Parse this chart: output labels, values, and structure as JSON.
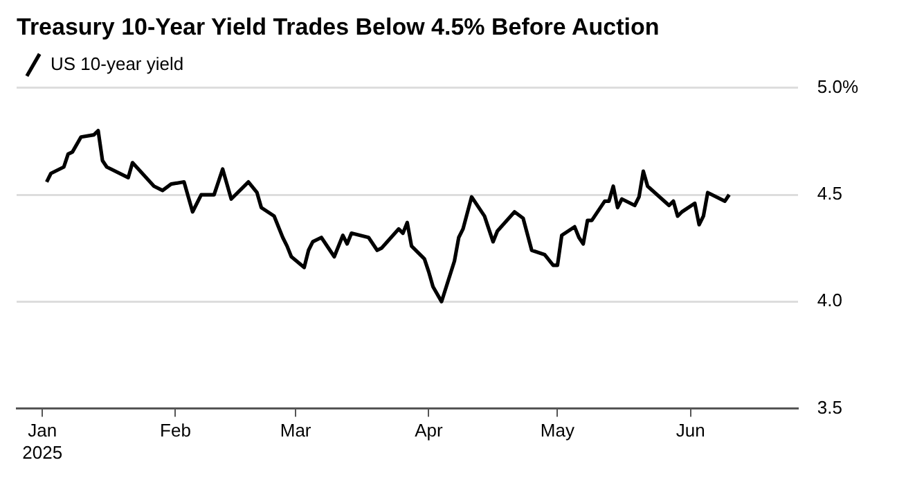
{
  "chart_data": {
    "type": "line",
    "title": "Treasury 10-Year Yield Trades Below 4.5% Before Auction",
    "x": [
      "2025-01-02",
      "2025-01-03",
      "2025-01-06",
      "2025-01-07",
      "2025-01-08",
      "2025-01-10",
      "2025-01-13",
      "2025-01-14",
      "2025-01-15",
      "2025-01-16",
      "2025-01-21",
      "2025-01-22",
      "2025-01-27",
      "2025-01-29",
      "2025-01-31",
      "2025-02-03",
      "2025-02-05",
      "2025-02-07",
      "2025-02-10",
      "2025-02-12",
      "2025-02-14",
      "2025-02-18",
      "2025-02-20",
      "2025-02-21",
      "2025-02-24",
      "2025-02-26",
      "2025-02-27",
      "2025-02-28",
      "2025-03-03",
      "2025-03-04",
      "2025-03-05",
      "2025-03-07",
      "2025-03-10",
      "2025-03-12",
      "2025-03-13",
      "2025-03-14",
      "2025-03-18",
      "2025-03-20",
      "2025-03-21",
      "2025-03-25",
      "2025-03-26",
      "2025-03-27",
      "2025-03-28",
      "2025-03-31",
      "2025-04-01",
      "2025-04-02",
      "2025-04-04",
      "2025-04-07",
      "2025-04-08",
      "2025-04-09",
      "2025-04-11",
      "2025-04-14",
      "2025-04-16",
      "2025-04-17",
      "2025-04-21",
      "2025-04-23",
      "2025-04-25",
      "2025-04-28",
      "2025-04-30",
      "2025-05-01",
      "2025-05-02",
      "2025-05-05",
      "2025-05-06",
      "2025-05-07",
      "2025-05-08",
      "2025-05-09",
      "2025-05-12",
      "2025-05-13",
      "2025-05-14",
      "2025-05-15",
      "2025-05-16",
      "2025-05-19",
      "2025-05-20",
      "2025-05-21",
      "2025-05-22",
      "2025-05-27",
      "2025-05-28",
      "2025-05-29",
      "2025-05-30",
      "2025-06-02",
      "2025-06-03",
      "2025-06-04",
      "2025-06-05",
      "2025-06-09",
      "2025-06-10"
    ],
    "series": [
      {
        "name": "US 10-year yield",
        "color": "#000000",
        "values": [
          4.56,
          4.6,
          4.63,
          4.69,
          4.7,
          4.77,
          4.78,
          4.8,
          4.66,
          4.63,
          4.58,
          4.65,
          4.54,
          4.52,
          4.55,
          4.56,
          4.42,
          4.5,
          4.5,
          4.62,
          4.48,
          4.56,
          4.51,
          4.44,
          4.4,
          4.3,
          4.26,
          4.21,
          4.16,
          4.24,
          4.28,
          4.3,
          4.21,
          4.31,
          4.27,
          4.32,
          4.3,
          4.24,
          4.25,
          4.34,
          4.32,
          4.37,
          4.26,
          4.2,
          4.14,
          4.07,
          4.0,
          4.19,
          4.3,
          4.34,
          4.49,
          4.4,
          4.28,
          4.33,
          4.42,
          4.39,
          4.24,
          4.22,
          4.17,
          4.17,
          4.31,
          4.35,
          4.3,
          4.27,
          4.38,
          4.38,
          4.47,
          4.47,
          4.54,
          4.44,
          4.48,
          4.45,
          4.49,
          4.61,
          4.54,
          4.45,
          4.47,
          4.4,
          4.42,
          4.46,
          4.36,
          4.4,
          4.51,
          4.47,
          4.5
        ]
      }
    ],
    "xlim": [
      "2024-12-26",
      "2025-06-26"
    ],
    "xticks": [
      {
        "value": "2025-01-01",
        "label": "Jan\n2025"
      },
      {
        "value": "2025-02-01",
        "label": "Feb"
      },
      {
        "value": "2025-03-01",
        "label": "Mar"
      },
      {
        "value": "2025-04-01",
        "label": "Apr"
      },
      {
        "value": "2025-05-01",
        "label": "May"
      },
      {
        "value": "2025-06-01",
        "label": "Jun"
      }
    ],
    "ylim": [
      3.5,
      5.0
    ],
    "yticks": [
      3.5,
      {
        "value": 4.0,
        "label": "4.0"
      },
      4.5,
      {
        "value": 5.0,
        "label": "5.0%"
      }
    ],
    "grid": "y",
    "legend": "top left",
    "marker": "none",
    "line_style": "solid"
  }
}
